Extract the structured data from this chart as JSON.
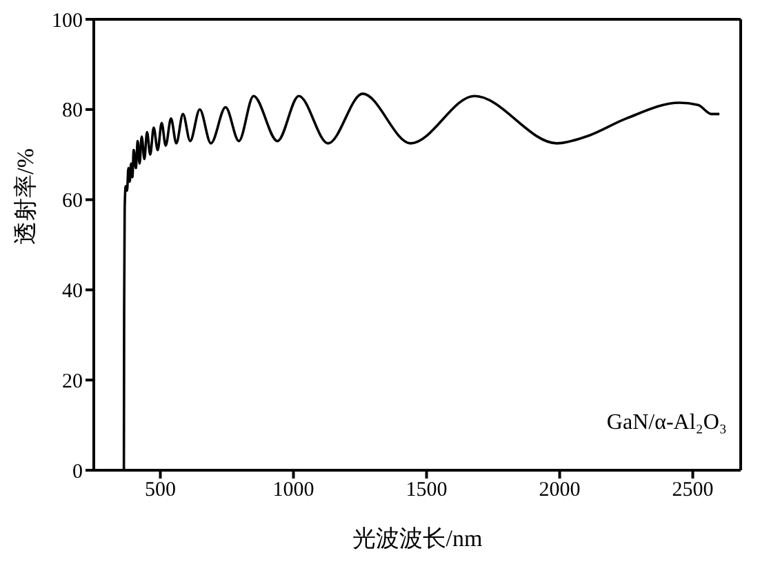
{
  "chart_data": {
    "type": "line",
    "xlabel": "光波波长/nm",
    "ylabel": "透射率/%",
    "annotations": [
      "GaN/α-Al₂O₃"
    ],
    "xlim": [
      250,
      2680
    ],
    "xticks": [
      500,
      1000,
      1500,
      2000,
      2500
    ],
    "ylim": [
      0,
      100
    ],
    "yticks": [
      0,
      20,
      40,
      60,
      80,
      100
    ],
    "legend": false,
    "marker": "none",
    "line_style": "solid",
    "series": [
      {
        "color": "#000000",
        "x": [
          363,
          364,
          366,
          370,
          375,
          380,
          385,
          390,
          395,
          400,
          408,
          415,
          422,
          430,
          440,
          450,
          462,
          475,
          490,
          505,
          520,
          540,
          560,
          585,
          612,
          648,
          690,
          745,
          795,
          850,
          940,
          1020,
          1130,
          1260,
          1440,
          1680,
          1990,
          2100,
          2250,
          2450,
          2520,
          2570,
          2600
        ],
        "values": [
          0,
          35,
          58,
          63,
          62,
          67,
          64,
          68,
          65,
          71,
          67,
          73,
          68,
          74,
          69,
          75,
          70,
          76,
          71,
          77,
          72,
          78,
          72.5,
          79,
          73,
          80,
          72.5,
          80.5,
          73,
          83,
          73,
          83,
          72.5,
          83.5,
          72.5,
          83,
          72.5,
          74,
          78,
          81.5,
          81,
          79,
          79
        ]
      }
    ]
  }
}
